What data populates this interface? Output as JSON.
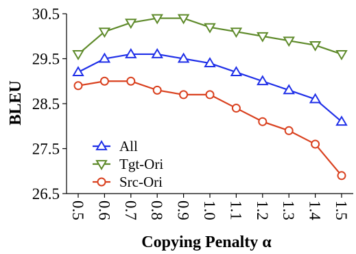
{
  "chart_data": {
    "type": "line",
    "xlabel": "Copying Penalty α",
    "ylabel": "BLEU",
    "x": [
      0.5,
      0.6,
      0.7,
      0.8,
      0.9,
      1.0,
      1.1,
      1.2,
      1.3,
      1.4,
      1.5
    ],
    "x_tick_labels": [
      "0.5",
      "0.6",
      "0.7",
      "0.8",
      "0.9",
      "1.0",
      "1.1",
      "1.2",
      "1.3",
      "1.4",
      "1.5"
    ],
    "ylim": [
      26.5,
      30.5
    ],
    "y_ticks": [
      26.5,
      27.5,
      28.5,
      29.5,
      30.5
    ],
    "y_tick_labels": [
      "26.5",
      "27.5",
      "28.5",
      "29.5",
      "30.5"
    ],
    "grid": false,
    "legend_position": "bottom-left",
    "series": [
      {
        "name": "All",
        "color": "#1f2fe8",
        "marker": "triangle-up",
        "values": [
          29.2,
          29.5,
          29.6,
          29.6,
          29.5,
          29.4,
          29.2,
          29.0,
          28.8,
          28.6,
          28.1
        ]
      },
      {
        "name": "Tgt-Ori",
        "color": "#5e8a2a",
        "marker": "triangle-down",
        "values": [
          29.6,
          30.1,
          30.3,
          30.4,
          30.4,
          30.2,
          30.1,
          30.0,
          29.9,
          29.8,
          29.6
        ]
      },
      {
        "name": "Src-Ori",
        "color": "#d9401e",
        "marker": "circle",
        "values": [
          28.9,
          29.0,
          29.0,
          28.8,
          28.7,
          28.7,
          28.4,
          28.1,
          27.9,
          27.6,
          26.9
        ]
      }
    ]
  }
}
